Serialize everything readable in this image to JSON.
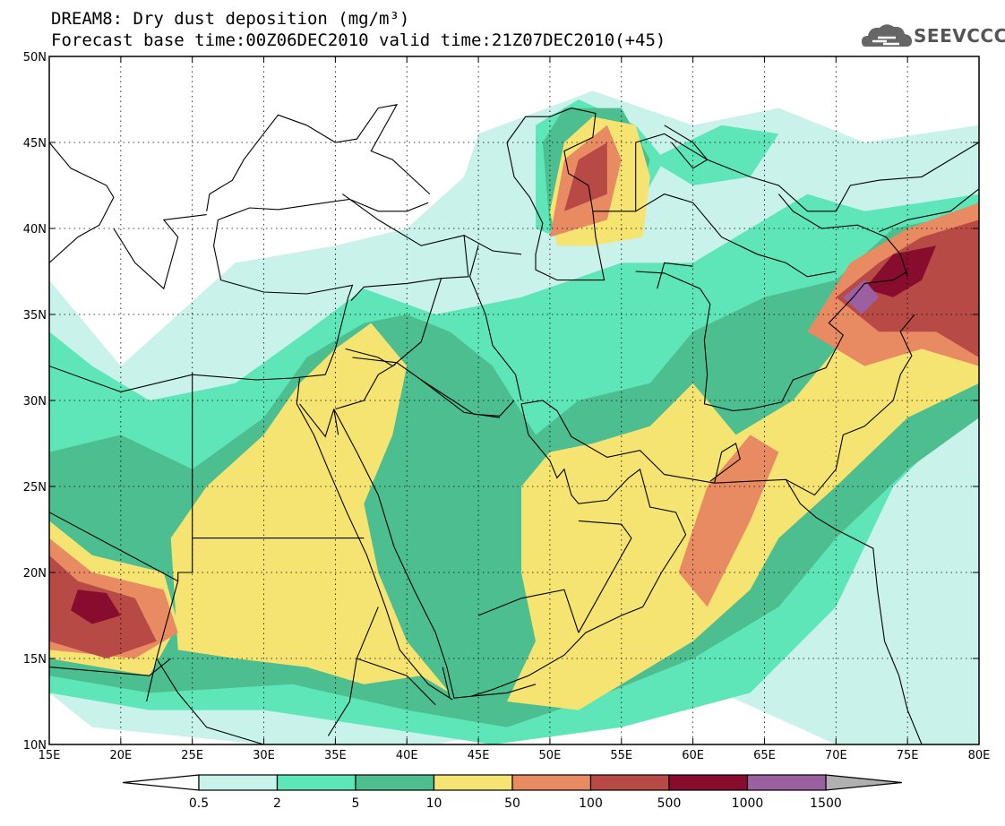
{
  "title": {
    "line1": "DREAM8: Dry dust deposition (mg/m³)",
    "line2": "Forecast base time:00Z06DEC2010 valid time:21Z07DEC2010(+45)"
  },
  "logo": {
    "icon": "cloud-icon",
    "text": "SEEVCCC"
  },
  "map": {
    "lon_min": 15,
    "lon_max": 80,
    "lat_min": 10,
    "lat_max": 50,
    "lat_ticks": [
      {
        "value": 50,
        "label": "50N"
      },
      {
        "value": 45,
        "label": "45N"
      },
      {
        "value": 40,
        "label": "40N"
      },
      {
        "value": 35,
        "label": "35N"
      },
      {
        "value": 30,
        "label": "30N"
      },
      {
        "value": 25,
        "label": "25N"
      },
      {
        "value": 20,
        "label": "20N"
      },
      {
        "value": 15,
        "label": "15N"
      },
      {
        "value": 10,
        "label": "10N"
      }
    ],
    "lon_ticks": [
      {
        "value": 15,
        "label": "15E"
      },
      {
        "value": 20,
        "label": "20E"
      },
      {
        "value": 25,
        "label": "25E"
      },
      {
        "value": 30,
        "label": "30E"
      },
      {
        "value": 35,
        "label": "35E"
      },
      {
        "value": 40,
        "label": "40E"
      },
      {
        "value": 45,
        "label": "45E"
      },
      {
        "value": 50,
        "label": "50E"
      },
      {
        "value": 55,
        "label": "55E"
      },
      {
        "value": 60,
        "label": "60E"
      },
      {
        "value": 65,
        "label": "65E"
      },
      {
        "value": 70,
        "label": "70E"
      },
      {
        "value": 75,
        "label": "75E"
      },
      {
        "value": 80,
        "label": "80E"
      }
    ],
    "grid": true
  },
  "colorbar": {
    "colors": [
      "#c8f2ea",
      "#5ee6b8",
      "#4dbe8f",
      "#f6e472",
      "#e88a62",
      "#b84a46",
      "#880c2e",
      "#9a60a0"
    ],
    "labels": [
      "0.5",
      "2",
      "5",
      "10",
      "50",
      "100",
      "500",
      "1000",
      "1500"
    ],
    "under_color": "#ffffff",
    "over_color": "#b0b0b0"
  }
}
